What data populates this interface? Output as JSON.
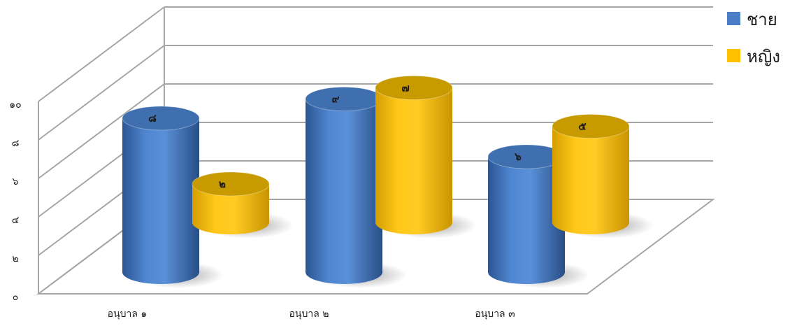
{
  "chart_data": {
    "type": "bar",
    "style": "3d-cylinder",
    "categories": [
      "อนุบาล ๑",
      "อนุบาล ๒",
      "อนุบาล ๓"
    ],
    "series": [
      {
        "name": "ชาย",
        "values": [
          8,
          9,
          6
        ],
        "labels": [
          "๘",
          "๙",
          "๖"
        ],
        "color": "#4a7ec7"
      },
      {
        "name": "หญิง",
        "values": [
          2,
          7,
          5
        ],
        "labels": [
          "๒",
          "๗",
          "๕"
        ],
        "color": "#ffc000"
      }
    ],
    "y_ticks": [
      {
        "value": 0,
        "label": "๐"
      },
      {
        "value": 2,
        "label": "๒"
      },
      {
        "value": 4,
        "label": "๔"
      },
      {
        "value": 6,
        "label": "๖"
      },
      {
        "value": 8,
        "label": "๘"
      },
      {
        "value": 10,
        "label": "๑๐"
      }
    ],
    "ylim": [
      0,
      10
    ],
    "grid": true,
    "legend": "top-right"
  }
}
